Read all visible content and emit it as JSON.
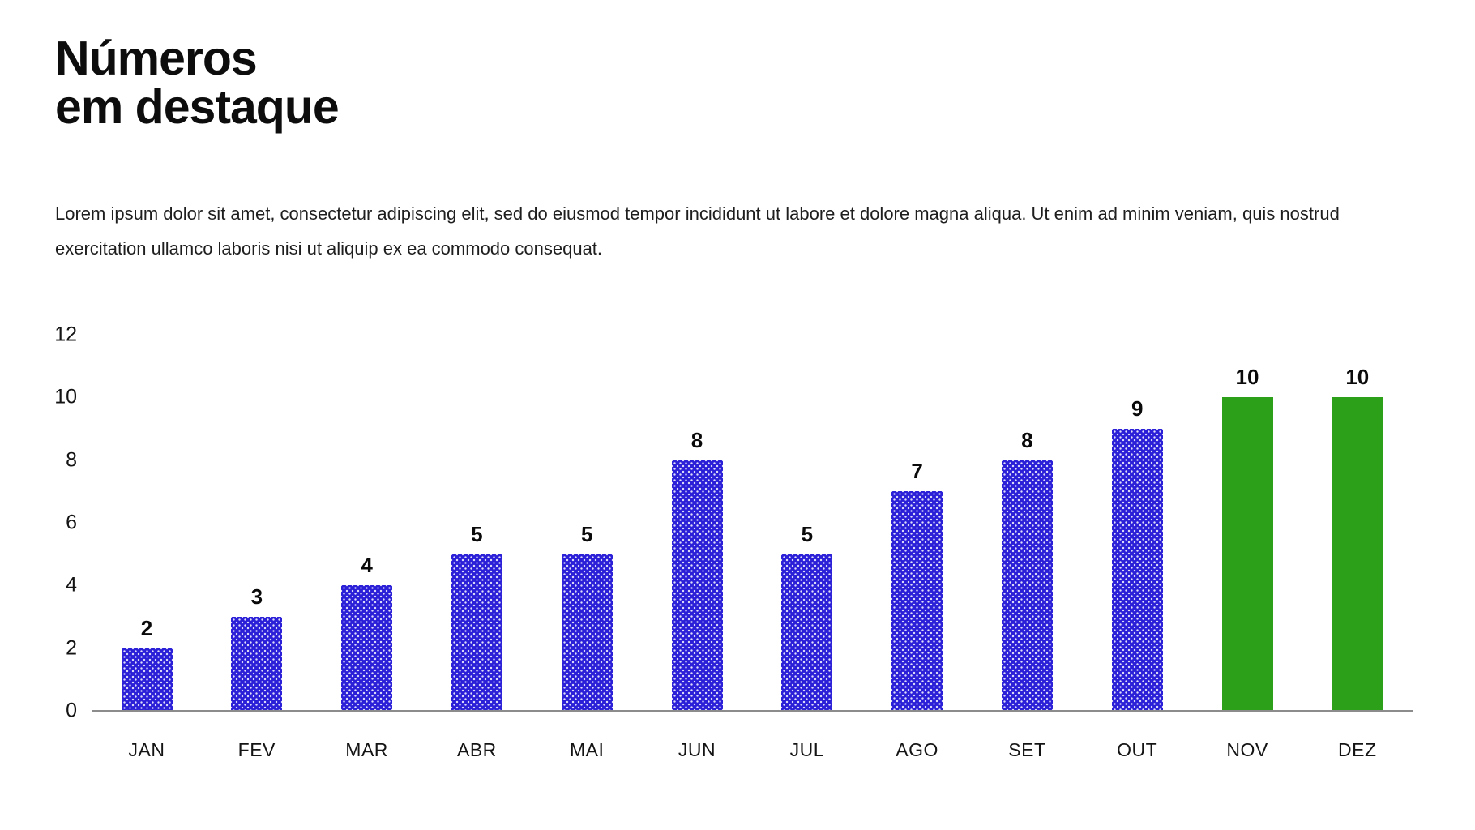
{
  "header": {
    "title_line1": "Números",
    "title_line2": "em destaque",
    "paragraph": "Lorem ipsum dolor sit amet, consectetur adipiscing elit, sed do eiusmod tempor incididunt ut labore et dolore magna aliqua. Ut enim ad minim veniam, quis nostrud exercitation ullamco laboris nisi ut aliquip ex ea commodo consequat."
  },
  "chart_data": {
    "type": "bar",
    "categories": [
      "JAN",
      "FEV",
      "MAR",
      "ABR",
      "MAI",
      "JUN",
      "JUL",
      "AGO",
      "SET",
      "OUT",
      "NOV",
      "DEZ"
    ],
    "values": [
      2,
      3,
      4,
      5,
      5,
      8,
      5,
      7,
      8,
      9,
      10,
      10
    ],
    "data_labels": [
      2,
      3,
      4,
      5,
      5,
      8,
      5,
      7,
      8,
      9,
      10,
      10
    ],
    "y_ticks": [
      0,
      2,
      4,
      6,
      8,
      10,
      12
    ],
    "ylim": [
      0,
      12
    ],
    "grid": false,
    "legend": false,
    "title": "",
    "xlabel": "",
    "ylabel": "",
    "bar_fill_style": "dotted-pattern",
    "highlight_fill_style": "solid",
    "highlight_indices": [
      10,
      11
    ],
    "colors": {
      "bar_default": "#2b20d8",
      "bar_highlight": "#2ca019",
      "axis_line": "#8c8c8c",
      "label_text": "#0a0a0a"
    }
  }
}
